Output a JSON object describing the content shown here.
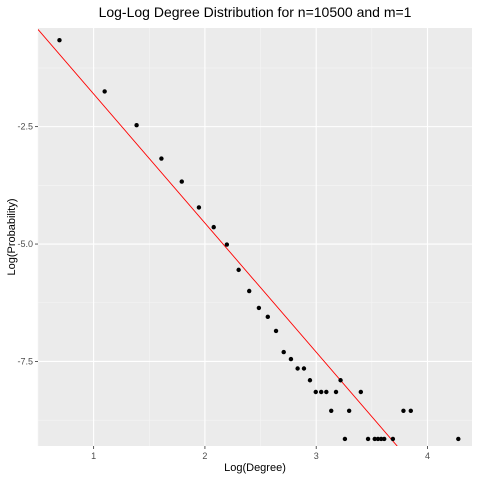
{
  "colors": {
    "panel_background": "#ebebeb",
    "grid_major": "#ffffff",
    "grid_minor": "#f5f5f5",
    "points": "#000000",
    "fit_line": "#ff0000",
    "tick_text": "#4d4d4d"
  },
  "chart_data": {
    "type": "scatter",
    "title": "Log-Log Degree Distribution for n=10500 and m=1",
    "xlabel": "Log(Degree)",
    "ylabel": "Log(Probability)",
    "xlim": [
      0.5,
      4.4
    ],
    "ylim": [
      -9.3,
      -0.4
    ],
    "xticks": [
      1,
      2,
      3,
      4
    ],
    "xtick_labels": [
      "1",
      "2",
      "3",
      "4"
    ],
    "yticks": [
      -2.5,
      -5.0,
      -7.5
    ],
    "ytick_labels": [
      "-2.5",
      "-5.0",
      "-7.5"
    ],
    "grid": true,
    "legend": "none",
    "points": [
      {
        "x": 0.693,
        "y": -0.66
      },
      {
        "x": 1.099,
        "y": -1.75
      },
      {
        "x": 1.386,
        "y": -2.47
      },
      {
        "x": 1.609,
        "y": -3.18
      },
      {
        "x": 1.792,
        "y": -3.67
      },
      {
        "x": 1.946,
        "y": -4.22
      },
      {
        "x": 2.079,
        "y": -4.64
      },
      {
        "x": 2.197,
        "y": -5.01
      },
      {
        "x": 2.303,
        "y": -5.55
      },
      {
        "x": 2.398,
        "y": -6.0
      },
      {
        "x": 2.485,
        "y": -6.36
      },
      {
        "x": 2.565,
        "y": -6.55
      },
      {
        "x": 2.639,
        "y": -6.85
      },
      {
        "x": 2.708,
        "y": -7.3
      },
      {
        "x": 2.773,
        "y": -7.45
      },
      {
        "x": 2.833,
        "y": -7.65
      },
      {
        "x": 2.89,
        "y": -7.65
      },
      {
        "x": 2.944,
        "y": -7.9
      },
      {
        "x": 2.996,
        "y": -8.15
      },
      {
        "x": 3.045,
        "y": -8.15
      },
      {
        "x": 3.091,
        "y": -8.15
      },
      {
        "x": 3.135,
        "y": -8.55
      },
      {
        "x": 3.178,
        "y": -8.15
      },
      {
        "x": 3.219,
        "y": -7.9
      },
      {
        "x": 3.258,
        "y": -9.15
      },
      {
        "x": 3.296,
        "y": -8.55
      },
      {
        "x": 3.401,
        "y": -8.15
      },
      {
        "x": 3.466,
        "y": -9.15
      },
      {
        "x": 3.526,
        "y": -9.15
      },
      {
        "x": 3.555,
        "y": -9.15
      },
      {
        "x": 3.584,
        "y": -9.15
      },
      {
        "x": 3.611,
        "y": -9.15
      },
      {
        "x": 3.689,
        "y": -9.15
      },
      {
        "x": 3.784,
        "y": -8.55
      },
      {
        "x": 3.85,
        "y": -8.55
      },
      {
        "x": 4.277,
        "y": -9.15
      }
    ],
    "fit_line": {
      "x": [
        0.5,
        3.8
      ],
      "y": [
        -0.43,
        -9.5
      ]
    }
  }
}
